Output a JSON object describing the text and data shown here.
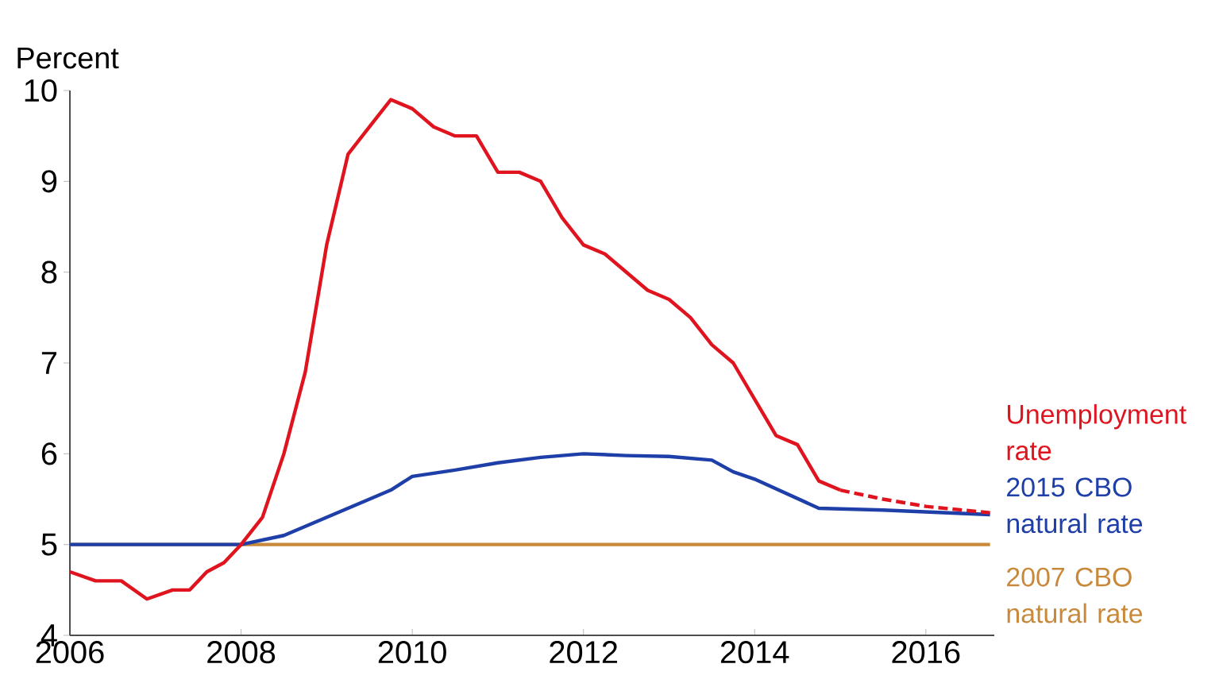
{
  "chart_data": {
    "type": "line",
    "ylabel": "Percent",
    "xlim": [
      2006,
      2016.8
    ],
    "xticks": [
      2006,
      2008,
      2010,
      2012,
      2014,
      2016
    ],
    "ylim": [
      4,
      10
    ],
    "yticks": [
      4,
      5,
      6,
      7,
      8,
      9,
      10
    ],
    "grid": false,
    "marker": "none",
    "series": [
      {
        "name": "2007 CBO natural rate",
        "color": "#c8893a",
        "line_style": "solid",
        "x": [
          2006,
          2016.75
        ],
        "values": [
          5.0,
          5.0
        ]
      },
      {
        "name": "2015 CBO natural rate",
        "color": "#1f3fa8",
        "line_style": "solid",
        "x": [
          2006,
          2008,
          2008.5,
          2009,
          2009.5,
          2009.75,
          2010,
          2010.5,
          2011,
          2011.5,
          2012,
          2012.5,
          2013,
          2013.5,
          2013.75,
          2014,
          2014.75,
          2015.5,
          2016.75
        ],
        "values": [
          5.0,
          5.0,
          5.1,
          5.3,
          5.5,
          5.6,
          5.75,
          5.82,
          5.9,
          5.96,
          6.0,
          5.98,
          5.97,
          5.93,
          5.8,
          5.72,
          5.4,
          5.38,
          5.33
        ]
      },
      {
        "name": "Unemployment rate",
        "color": "#e0141e",
        "line_style": "solid",
        "x": [
          2006,
          2006.3,
          2006.6,
          2006.9,
          2007.2,
          2007.4,
          2007.6,
          2007.8,
          2008,
          2008.25,
          2008.5,
          2008.75,
          2009,
          2009.25,
          2009.5,
          2009.75,
          2010,
          2010.25,
          2010.5,
          2010.75,
          2011,
          2011.25,
          2011.5,
          2011.75,
          2012,
          2012.25,
          2012.5,
          2012.75,
          2013,
          2013.25,
          2013.5,
          2013.75,
          2014,
          2014.25,
          2014.5,
          2014.75,
          2015
        ],
        "values": [
          4.7,
          4.6,
          4.6,
          4.4,
          4.5,
          4.5,
          4.7,
          4.8,
          5.0,
          5.3,
          6.0,
          6.9,
          8.3,
          9.3,
          9.6,
          9.9,
          9.8,
          9.6,
          9.5,
          9.5,
          9.1,
          9.1,
          9.0,
          8.6,
          8.3,
          8.2,
          8.0,
          7.8,
          7.7,
          7.5,
          7.2,
          7.0,
          6.6,
          6.2,
          6.1,
          5.7,
          5.6
        ]
      },
      {
        "color": "#e0141e",
        "line_style": "dashed",
        "x": [
          2015,
          2015.5,
          2016,
          2016.75
        ],
        "values": [
          5.6,
          5.5,
          5.42,
          5.35
        ]
      }
    ]
  }
}
